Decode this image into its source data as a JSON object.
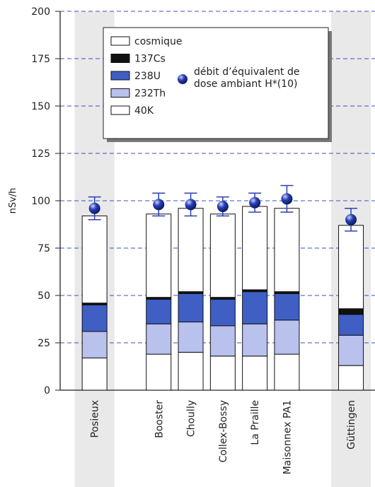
{
  "chart_data": {
    "type": "stacked-bar",
    "y_label": "nSv/h",
    "categories": [
      "Posieux",
      null,
      "Booster",
      "Choully",
      "Collex-Bossy",
      "La Praille",
      "Maisonnex PA1",
      null,
      "Güttingen"
    ],
    "series": [
      {
        "name": "40K",
        "color": "#ffffff",
        "values": [
          17,
          null,
          19,
          20,
          18,
          18,
          19,
          null,
          13
        ]
      },
      {
        "name": "232Th",
        "color": "#b9c1ed",
        "values": [
          14,
          null,
          16,
          16,
          16,
          17,
          18,
          null,
          16
        ]
      },
      {
        "name": "238U",
        "color": "#3f5fc4",
        "values": [
          14,
          null,
          13,
          15,
          14,
          17,
          14,
          null,
          11
        ]
      },
      {
        "name": "137Cs",
        "color": "#111111",
        "values": [
          1,
          null,
          1,
          1,
          1,
          1,
          1,
          null,
          3
        ]
      },
      {
        "name": "cosmique",
        "color": "#ffffff",
        "values": [
          46,
          null,
          44,
          44,
          44,
          44,
          44,
          null,
          44
        ]
      }
    ],
    "dose": {
      "name": "débit d’équivalent de dose ambiant H*(10)",
      "color": "#2a40b5",
      "values": [
        96,
        null,
        98,
        98,
        97,
        99,
        101,
        null,
        90
      ],
      "errors": [
        6,
        null,
        6,
        6,
        5,
        5,
        7,
        null,
        6
      ]
    },
    "ylim": [
      0,
      200
    ],
    "yticks": [
      0,
      25,
      50,
      75,
      100,
      125,
      150,
      175,
      200
    ],
    "grid": true
  }
}
